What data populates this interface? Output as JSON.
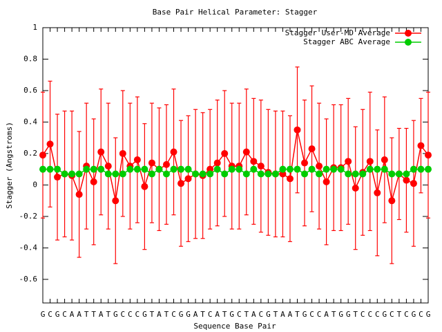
{
  "chart_data": {
    "type": "line",
    "title": "Base Pair Helical Parameter: Stagger",
    "x_label": "Sequence Base Pair",
    "y_label": "Stagger (Angstroms)",
    "categories": [
      "G",
      "C",
      "G",
      "C",
      "A",
      "A",
      "T",
      "T",
      "A",
      "T",
      "G",
      "C",
      "C",
      "C",
      "G",
      "T",
      "A",
      "T",
      "C",
      "G",
      "G",
      "A",
      "T",
      "C",
      "A",
      "T",
      "G",
      "C",
      "T",
      "A",
      "C",
      "G",
      "T",
      "A",
      "A",
      "T",
      "G",
      "C",
      "C",
      "A",
      "T",
      "G",
      "G",
      "T",
      "C",
      "C",
      "C",
      "G",
      "C",
      "T",
      "C",
      "G",
      "C",
      "G"
    ],
    "ylim": [
      -0.75,
      1
    ],
    "yticks": [
      -0.6,
      -0.4,
      -0.2,
      0,
      0.2,
      0.4,
      0.6,
      0.8,
      1
    ],
    "legend": "top-right",
    "series": [
      {
        "name": "Stagger User-MD Average",
        "color": "#ff0000",
        "values": [
          0.19,
          0.26,
          0.05,
          0.07,
          0.06,
          -0.06,
          0.12,
          0.02,
          0.21,
          0.12,
          -0.1,
          0.2,
          0.12,
          0.16,
          -0.01,
          0.14,
          0.1,
          0.13,
          0.21,
          0.01,
          0.04,
          0.07,
          0.06,
          0.1,
          0.14,
          0.2,
          0.12,
          0.12,
          0.21,
          0.15,
          0.12,
          0.08,
          0.07,
          0.07,
          0.04,
          0.35,
          0.14,
          0.23,
          0.12,
          0.02,
          0.11,
          0.11,
          0.15,
          -0.02,
          0.08,
          0.15,
          -0.05,
          0.16,
          -0.1,
          0.07,
          0.03,
          0.01,
          0.25,
          0.19
        ],
        "errors": [
          0.4,
          0.4,
          0.4,
          0.4,
          0.41,
          0.4,
          0.4,
          0.4,
          0.4,
          0.4,
          0.4,
          0.4,
          0.4,
          0.4,
          0.4,
          0.38,
          0.39,
          0.38,
          0.4,
          0.4,
          0.4,
          0.41,
          0.4,
          0.38,
          0.4,
          0.4,
          0.4,
          0.4,
          0.4,
          0.4,
          0.42,
          0.4,
          0.4,
          0.4,
          0.4,
          0.4,
          0.4,
          0.4,
          0.4,
          0.4,
          0.4,
          0.4,
          0.4,
          0.39,
          0.4,
          0.44,
          0.4,
          0.4,
          0.4,
          0.29,
          0.33,
          0.4,
          0.3,
          0.4
        ]
      },
      {
        "name": "Stagger ABC Average",
        "color": "#00cc00",
        "values": [
          0.1,
          0.1,
          0.1,
          0.07,
          0.07,
          0.07,
          0.1,
          0.1,
          0.1,
          0.07,
          0.07,
          0.07,
          0.1,
          0.1,
          0.1,
          0.07,
          0.1,
          0.07,
          0.1,
          0.1,
          0.1,
          0.07,
          0.07,
          0.07,
          0.1,
          0.07,
          0.1,
          0.1,
          0.07,
          0.1,
          0.07,
          0.07,
          0.07,
          0.1,
          0.1,
          0.1,
          0.07,
          0.1,
          0.07,
          0.1,
          0.1,
          0.1,
          0.07,
          0.07,
          0.07,
          0.1,
          0.1,
          0.1,
          0.07,
          0.07,
          0.07,
          0.1,
          0.1,
          0.1
        ]
      }
    ]
  }
}
